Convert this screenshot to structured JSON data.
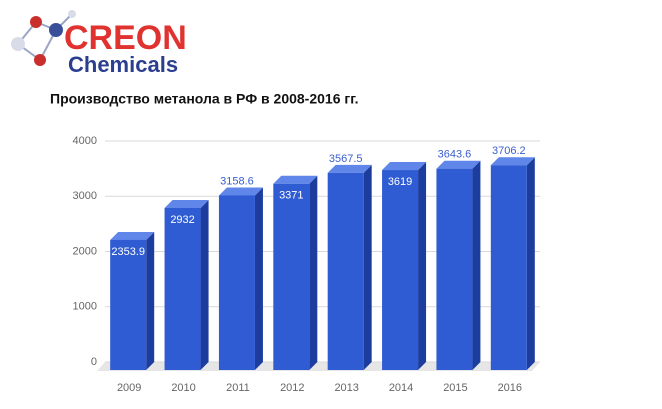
{
  "logo": {
    "name": "CREON",
    "tagline": "Chemicals"
  },
  "chart_data": {
    "type": "bar3d",
    "title": "Производство метанола в РФ в 2008-2016 гг.",
    "categories": [
      "2009",
      "2010",
      "2011",
      "2012",
      "2013",
      "2014",
      "2015",
      "2016"
    ],
    "values": [
      2353.9,
      2932,
      3158.6,
      3371,
      3567.5,
      3619,
      3643.6,
      3706.2
    ],
    "color": "#2f5bd3",
    "ylim": [
      0,
      4000
    ],
    "yticks": [
      0,
      1000,
      2000,
      3000,
      4000
    ],
    "grid": true
  }
}
